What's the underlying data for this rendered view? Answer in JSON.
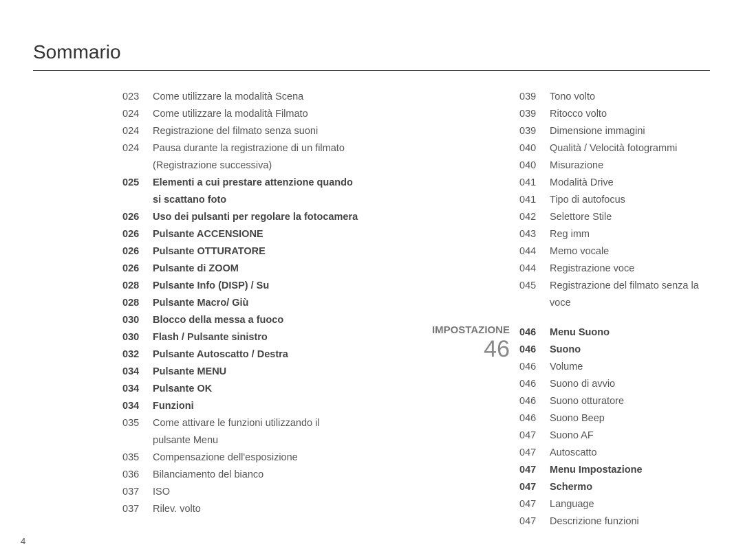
{
  "title": "Sommario",
  "page_number": "4",
  "section": {
    "label": "IMPOSTAZIONE",
    "number": "46"
  },
  "left": [
    {
      "num": "023",
      "txt": "Come utilizzare la modalità Scena",
      "bold": false
    },
    {
      "num": "024",
      "txt": "Come utilizzare la modalità Filmato",
      "bold": false
    },
    {
      "num": "024",
      "txt": "Registrazione del filmato senza suoni",
      "bold": false
    },
    {
      "num": "024",
      "txt": "Pausa durante la registrazione di un filmato",
      "bold": false
    },
    {
      "cont": "(Registrazione successiva)",
      "bold": false
    },
    {
      "num": "025",
      "txt": "Elementi a cui prestare attenzione quando",
      "bold": true
    },
    {
      "cont": "si scattano foto",
      "bold": true
    },
    {
      "num": "026",
      "txt": "Uso dei pulsanti per regolare la fotocamera",
      "bold": true
    },
    {
      "num": "026",
      "txt": "Pulsante ACCENSIONE",
      "bold": true
    },
    {
      "num": "026",
      "txt": "Pulsante OTTURATORE",
      "bold": true
    },
    {
      "num": "026",
      "txt": "Pulsante di ZOOM",
      "bold": true
    },
    {
      "num": "028",
      "txt": "Pulsante Info (DISP) / Su",
      "bold": true
    },
    {
      "num": "028",
      "txt": "Pulsante Macro/ Giù",
      "bold": true
    },
    {
      "num": "030",
      "txt": "Blocco della messa a fuoco",
      "bold": true
    },
    {
      "num": "030",
      "txt": "Flash / Pulsante sinistro",
      "bold": true
    },
    {
      "num": "032",
      "txt": "Pulsante Autoscatto / Destra",
      "bold": true
    },
    {
      "num": "034",
      "txt": "Pulsante MENU",
      "bold": true
    },
    {
      "num": "034",
      "txt": "Pulsante OK",
      "bold": true
    },
    {
      "num": "034",
      "txt": "Funzioni",
      "bold": true
    },
    {
      "num": "035",
      "txt": "Come attivare le funzioni utilizzando il",
      "bold": false
    },
    {
      "cont": "pulsante Menu",
      "bold": false
    },
    {
      "num": "035",
      "txt": "Compensazione dell'esposizione",
      "bold": false
    },
    {
      "num": "036",
      "txt": "Bilanciamento del bianco",
      "bold": false
    },
    {
      "num": "037",
      "txt": "ISO",
      "bold": false
    },
    {
      "num": "037",
      "txt": "Rilev. volto",
      "bold": false
    }
  ],
  "right_top": [
    {
      "num": "039",
      "txt": "Tono volto",
      "bold": false
    },
    {
      "num": "039",
      "txt": "Ritocco volto",
      "bold": false
    },
    {
      "num": "039",
      "txt": "Dimensione immagini",
      "bold": false
    },
    {
      "num": "040",
      "txt": "Qualità / Velocità fotogrammi",
      "bold": false
    },
    {
      "num": "040",
      "txt": "Misurazione",
      "bold": false
    },
    {
      "num": "041",
      "txt": "Modalità Drive",
      "bold": false
    },
    {
      "num": "041",
      "txt": "Tipo di autofocus",
      "bold": false
    },
    {
      "num": "042",
      "txt": "Selettore Stile",
      "bold": false
    },
    {
      "num": "043",
      "txt": "Reg imm",
      "bold": false
    },
    {
      "num": "044",
      "txt": "Memo vocale",
      "bold": false
    },
    {
      "num": "044",
      "txt": "Registrazione voce",
      "bold": false
    },
    {
      "num": "045",
      "txt": "Registrazione del filmato senza la voce",
      "bold": false
    }
  ],
  "right_bottom": [
    {
      "num": "046",
      "txt": "Menu Suono",
      "bold": true
    },
    {
      "num": "046",
      "txt": "Suono",
      "bold": true
    },
    {
      "num": "046",
      "txt": "Volume",
      "bold": false
    },
    {
      "num": "046",
      "txt": "Suono di avvio",
      "bold": false
    },
    {
      "num": "046",
      "txt": "Suono otturatore",
      "bold": false
    },
    {
      "num": "046",
      "txt": "Suono Beep",
      "bold": false
    },
    {
      "num": "047",
      "txt": "Suono AF",
      "bold": false
    },
    {
      "num": "047",
      "txt": "Autoscatto",
      "bold": false
    },
    {
      "num": "047",
      "txt": "Menu Impostazione",
      "bold": true
    },
    {
      "num": "047",
      "txt": "Schermo",
      "bold": true
    },
    {
      "num": "047",
      "txt": "Language",
      "bold": false
    },
    {
      "num": "047",
      "txt": "Descrizione funzioni",
      "bold": false
    }
  ]
}
